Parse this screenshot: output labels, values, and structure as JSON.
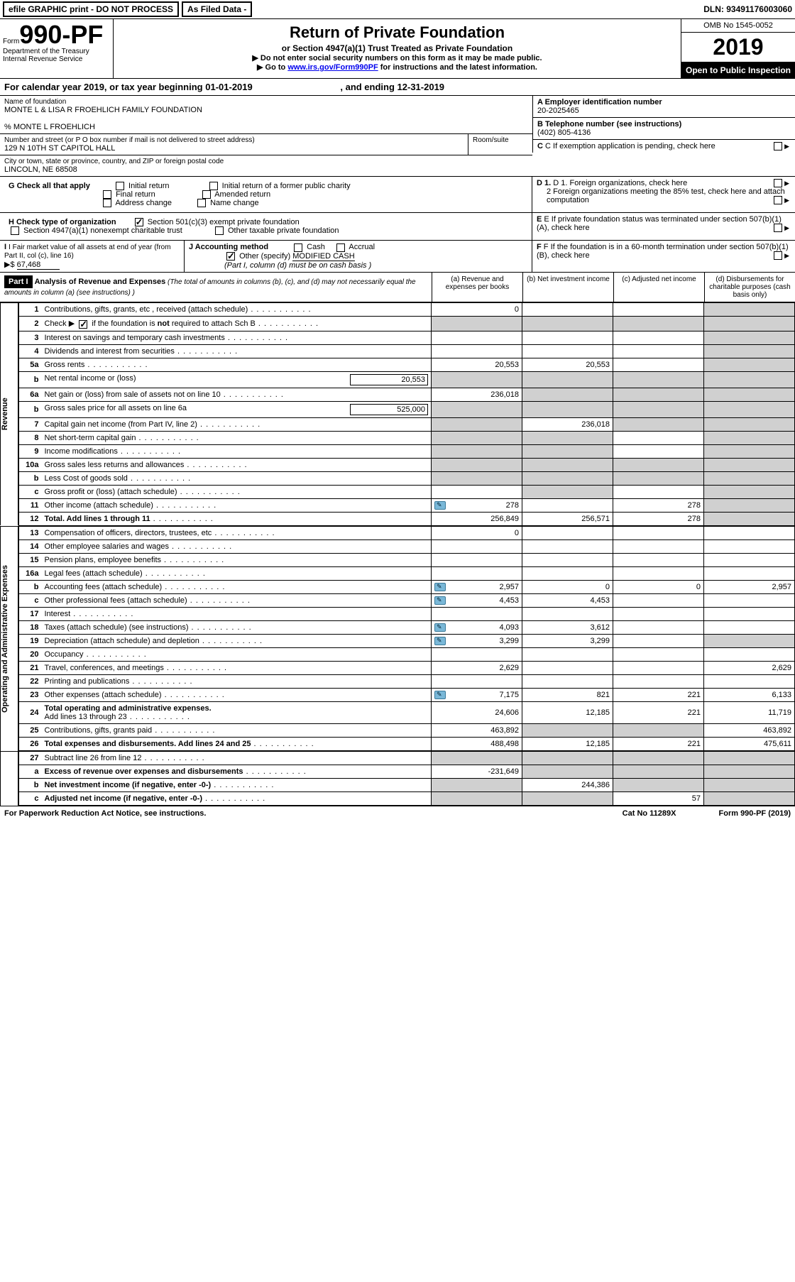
{
  "topbar": {
    "efile": "efile GRAPHIC print - DO NOT PROCESS",
    "asfiled": "As Filed Data -",
    "dln_label": "DLN:",
    "dln": "93491176003060"
  },
  "header": {
    "form_word": "Form",
    "form_num": "990-PF",
    "dept": "Department of the Treasury",
    "irs": "Internal Revenue Service",
    "title": "Return of Private Foundation",
    "subtitle": "or Section 4947(a)(1) Trust Treated as Private Foundation",
    "note1": "▶ Do not enter social security numbers on this form as it may be made public.",
    "note2_pre": "▶ Go to ",
    "note2_link": "www.irs.gov/Form990PF",
    "note2_post": " for instructions and the latest information.",
    "omb": "OMB No 1545-0052",
    "year": "2019",
    "inspection": "Open to Public Inspection"
  },
  "calyear": {
    "text_pre": "For calendar year 2019, or tax year beginning ",
    "begin": "01-01-2019",
    "mid": " , and ending ",
    "end": "12-31-2019"
  },
  "info": {
    "name_label": "Name of foundation",
    "name": "MONTE L & LISA R FROEHLICH FAMILY FOUNDATION",
    "care_of": "% MONTE L FROEHLICH",
    "addr_label": "Number and street (or P O  box number if mail is not delivered to street address)",
    "addr": "129 N 10TH ST CAPITOL HALL",
    "room_label": "Room/suite",
    "city_label": "City or town, state or province, country, and ZIP or foreign postal code",
    "city": "LINCOLN, NE  68508",
    "ein_label": "A Employer identification number",
    "ein": "20-2025465",
    "tel_label": "B Telephone number (see instructions)",
    "tel": "(402) 805-4136",
    "c_label": "C  If exemption application is pending, check here",
    "g_label": "G Check all that apply",
    "g_initial": "Initial return",
    "g_initial_former": "Initial return of a former public charity",
    "g_final": "Final return",
    "g_amended": "Amended return",
    "g_addr": "Address change",
    "g_name": "Name change",
    "d1": "D 1. Foreign organizations, check here",
    "d2": "2  Foreign organizations meeting the 85% test, check here and attach computation",
    "e_label": "E  If private foundation status was terminated under section 507(b)(1)(A), check here",
    "h_label": "H Check type of organization",
    "h_501c3": "Section 501(c)(3) exempt private foundation",
    "h_4947": "Section 4947(a)(1) nonexempt charitable trust",
    "h_other": "Other taxable private foundation",
    "f_label": "F  If the foundation is in a 60-month termination under section 507(b)(1)(B), check here",
    "i_label": "I Fair market value of all assets at end of year (from Part II, col  (c), line 16)",
    "i_val_pre": "▶$ ",
    "i_val": "67,468",
    "j_label": "J Accounting method",
    "j_cash": "Cash",
    "j_accrual": "Accrual",
    "j_other": "Other (specify)",
    "j_other_val": "MODIFIED CASH",
    "j_note": "(Part I, column (d) must be on cash basis )"
  },
  "part1": {
    "label": "Part I",
    "title": "Analysis of Revenue and Expenses",
    "title_note": " (The total of amounts in columns (b), (c), and (d) may not necessarily equal the amounts in column (a) (see instructions) )",
    "col_a": "(a) Revenue and expenses per books",
    "col_b": "(b) Net investment income",
    "col_c": "(c) Adjusted net income",
    "col_d": "(d) Disbursements for charitable purposes (cash basis only)"
  },
  "sections": {
    "revenue": "Revenue",
    "opadmin": "Operating and Administrative Expenses"
  },
  "rows": {
    "r1": {
      "ln": "1",
      "desc": "Contributions, gifts, grants, etc , received (attach schedule)",
      "a": "0"
    },
    "r2": {
      "ln": "2",
      "desc_pre": "Check ▶ ",
      "desc_post": " if the foundation is ",
      "bold": "not",
      "desc_end": " required to attach Sch  B"
    },
    "r3": {
      "ln": "3",
      "desc": "Interest on savings and temporary cash investments"
    },
    "r4": {
      "ln": "4",
      "desc": "Dividends and interest from securities"
    },
    "r5a": {
      "ln": "5a",
      "desc": "Gross rents",
      "a": "20,553",
      "b": "20,553"
    },
    "r5b": {
      "ln": "b",
      "desc": "Net rental income or (loss)",
      "box": "20,553"
    },
    "r6a": {
      "ln": "6a",
      "desc": "Net gain or (loss) from sale of assets not on line 10",
      "a": "236,018"
    },
    "r6b": {
      "ln": "b",
      "desc": "Gross sales price for all assets on line 6a",
      "box": "525,000"
    },
    "r7": {
      "ln": "7",
      "desc": "Capital gain net income (from Part IV, line 2)",
      "b": "236,018"
    },
    "r8": {
      "ln": "8",
      "desc": "Net short-term capital gain"
    },
    "r9": {
      "ln": "9",
      "desc": "Income modifications"
    },
    "r10a": {
      "ln": "10a",
      "desc": "Gross sales less returns and allowances"
    },
    "r10b": {
      "ln": "b",
      "desc": "Less  Cost of goods sold"
    },
    "r10c": {
      "ln": "c",
      "desc": "Gross profit or (loss) (attach schedule)"
    },
    "r11": {
      "ln": "11",
      "desc": "Other income (attach schedule)",
      "a": "278",
      "c": "278",
      "attach": true
    },
    "r12": {
      "ln": "12",
      "desc": "Total. Add lines 1 through 11",
      "a": "256,849",
      "b": "256,571",
      "c": "278",
      "bold": true
    },
    "r13": {
      "ln": "13",
      "desc": "Compensation of officers, directors, trustees, etc",
      "a": "0"
    },
    "r14": {
      "ln": "14",
      "desc": "Other employee salaries and wages"
    },
    "r15": {
      "ln": "15",
      "desc": "Pension plans, employee benefits"
    },
    "r16a": {
      "ln": "16a",
      "desc": "Legal fees (attach schedule)"
    },
    "r16b": {
      "ln": "b",
      "desc": "Accounting fees (attach schedule)",
      "a": "2,957",
      "b": "0",
      "c": "0",
      "d": "2,957",
      "attach": true
    },
    "r16c": {
      "ln": "c",
      "desc": "Other professional fees (attach schedule)",
      "a": "4,453",
      "b": "4,453",
      "attach": true
    },
    "r17": {
      "ln": "17",
      "desc": "Interest"
    },
    "r18": {
      "ln": "18",
      "desc": "Taxes (attach schedule) (see instructions)",
      "a": "4,093",
      "b": "3,612",
      "attach": true
    },
    "r19": {
      "ln": "19",
      "desc": "Depreciation (attach schedule) and depletion",
      "a": "3,299",
      "b": "3,299",
      "attach": true
    },
    "r20": {
      "ln": "20",
      "desc": "Occupancy"
    },
    "r21": {
      "ln": "21",
      "desc": "Travel, conferences, and meetings",
      "a": "2,629",
      "d": "2,629"
    },
    "r22": {
      "ln": "22",
      "desc": "Printing and publications"
    },
    "r23": {
      "ln": "23",
      "desc": "Other expenses (attach schedule)",
      "a": "7,175",
      "b": "821",
      "c": "221",
      "d": "6,133",
      "attach": true
    },
    "r24": {
      "ln": "24",
      "desc": "Total operating and administrative expenses.",
      "desc2": "Add lines 13 through 23",
      "a": "24,606",
      "b": "12,185",
      "c": "221",
      "d": "11,719",
      "bold": true
    },
    "r25": {
      "ln": "25",
      "desc": "Contributions, gifts, grants paid",
      "a": "463,892",
      "d": "463,892"
    },
    "r26": {
      "ln": "26",
      "desc": "Total expenses and disbursements. Add lines 24 and 25",
      "a": "488,498",
      "b": "12,185",
      "c": "221",
      "d": "475,611",
      "bold": true
    },
    "r27": {
      "ln": "27",
      "desc": "Subtract line 26 from line 12"
    },
    "r27a": {
      "ln": "a",
      "desc": "Excess of revenue over expenses and disbursements",
      "a": "-231,649",
      "bold": true
    },
    "r27b": {
      "ln": "b",
      "desc": "Net investment income (if negative, enter -0-)",
      "b": "244,386",
      "bold": true
    },
    "r27c": {
      "ln": "c",
      "desc": "Adjusted net income (if negative, enter -0-)",
      "c": "57",
      "bold": true
    }
  },
  "footer": {
    "left": "For Paperwork Reduction Act Notice, see instructions.",
    "mid": "Cat  No  11289X",
    "right": "Form 990-PF (2019)"
  }
}
